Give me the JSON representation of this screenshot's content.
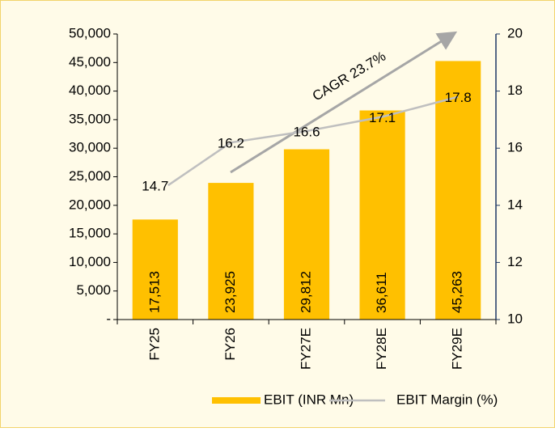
{
  "chart_data": {
    "type": "combo",
    "categories": [
      "FY25",
      "FY26",
      "FY27E",
      "FY28E",
      "FY29E"
    ],
    "series": [
      {
        "name": "EBIT (INR Mn)",
        "type": "bar",
        "color": "#ffc000",
        "values": [
          17513,
          23925,
          29812,
          36611,
          45263
        ],
        "value_labels": [
          "17,513",
          "23,925",
          "29,812",
          "36,611",
          "45,263"
        ]
      },
      {
        "name": "EBIT Margin (%)",
        "type": "line",
        "axis": "y2",
        "color": "#bfbfbf",
        "values": [
          14.7,
          16.2,
          16.6,
          17.1,
          17.8
        ]
      }
    ],
    "ylim": [
      0,
      50000
    ],
    "yticks": [
      {
        "value": 0,
        "label": "-"
      },
      {
        "value": 5000,
        "label": "5,000"
      },
      {
        "value": 10000,
        "label": "10,000"
      },
      {
        "value": 15000,
        "label": "15,000"
      },
      {
        "value": 20000,
        "label": "20,000"
      },
      {
        "value": 25000,
        "label": "25,000"
      },
      {
        "value": 30000,
        "label": "30,000"
      },
      {
        "value": 35000,
        "label": "35,000"
      },
      {
        "value": 40000,
        "label": "40,000"
      },
      {
        "value": 45000,
        "label": "45,000"
      },
      {
        "value": 50000,
        "label": "50,000"
      }
    ],
    "y2lim": [
      10,
      20
    ],
    "y2ticks": [
      10,
      12,
      14,
      16,
      18,
      20
    ],
    "annotations": [
      "CAGR 23.7%"
    ],
    "legend": "bottom"
  }
}
